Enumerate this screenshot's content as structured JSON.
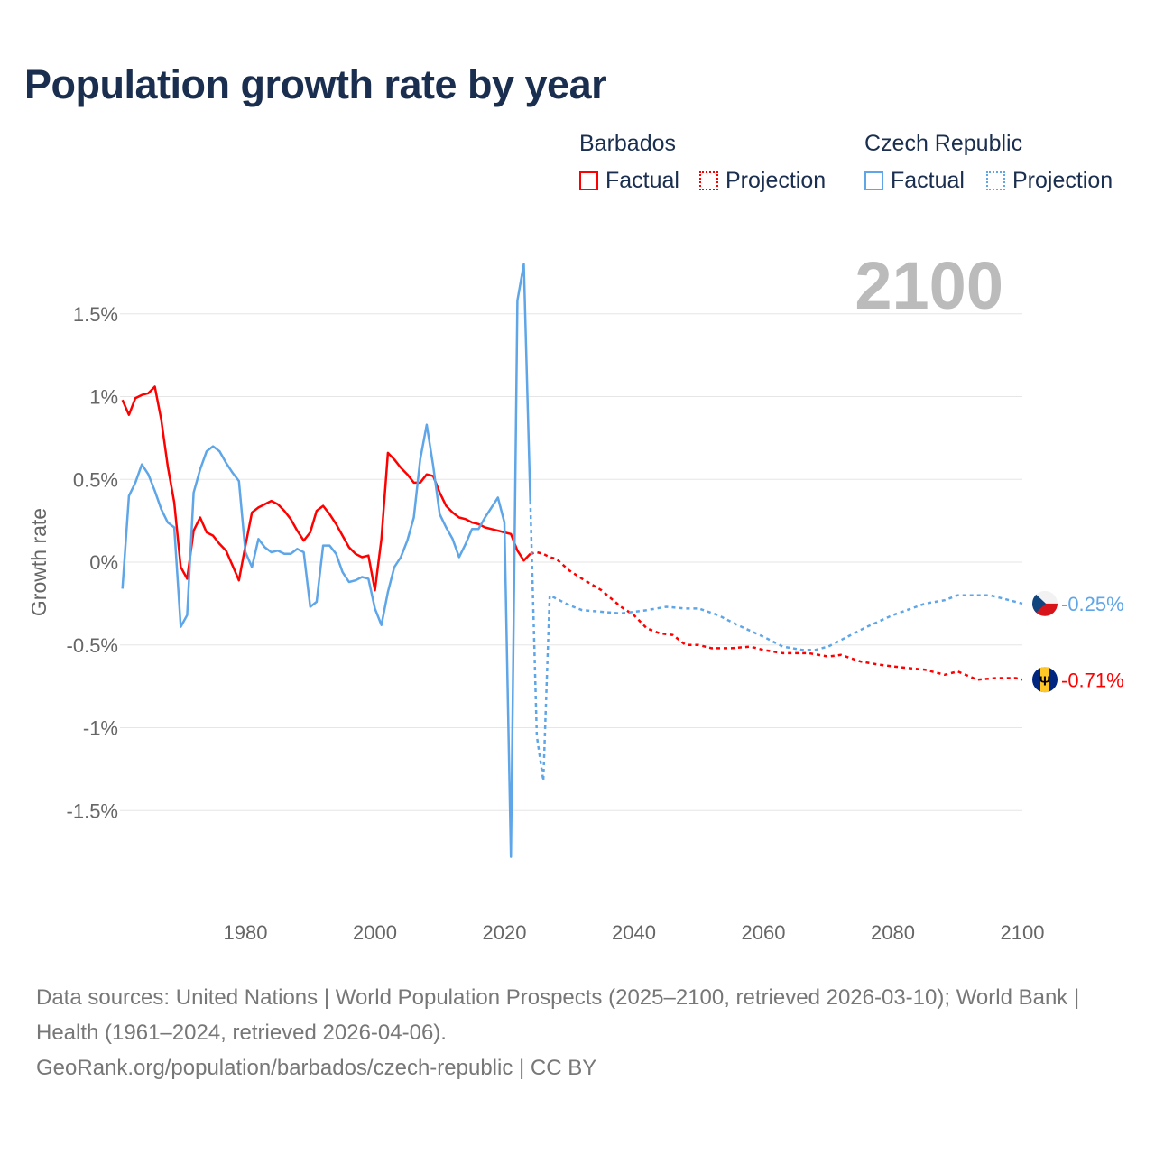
{
  "title": "Population growth rate by year",
  "legend": {
    "groups": [
      {
        "name": "Barbados",
        "factual": "Factual",
        "projection": "Projection",
        "color": "#ff0000"
      },
      {
        "name": "Czech Republic",
        "factual": "Factual",
        "projection": "Projection",
        "color": "#5ea6e8"
      }
    ]
  },
  "year_label": "2100",
  "footer": {
    "sources": "Data sources: United Nations | World Population Prospects (2025–2100, retrieved 2026-03-10); World Bank | Health (1961–2024, retrieved 2026-04-06).",
    "credit": "GeoRank.org/population/barbados/czech-republic | CC BY"
  },
  "chart_data": {
    "type": "line",
    "title": "Population growth rate by year",
    "xlabel": "",
    "ylabel": "Growth rate",
    "xlim": [
      1961,
      2100
    ],
    "ylim": [
      -1.9,
      1.9
    ],
    "x_ticks": [
      1980,
      2000,
      2020,
      2040,
      2060,
      2080,
      2100
    ],
    "x_tick_labels": [
      "1980",
      "2000",
      "2020",
      "2040",
      "2060",
      "2080",
      "2100"
    ],
    "y_ticks": [
      1.5,
      1,
      0.5,
      0,
      -0.5,
      -1,
      -1.5
    ],
    "y_tick_labels": [
      "1.5%",
      "1%",
      "0.5%",
      "0%",
      "-0.5%",
      "-1%",
      "-1.5%"
    ],
    "grid": true,
    "series": [
      {
        "name": "Barbados Factual",
        "color": "#ff0000",
        "dashed": false,
        "x": [
          1961,
          1962,
          1963,
          1964,
          1965,
          1966,
          1967,
          1968,
          1969,
          1970,
          1971,
          1972,
          1973,
          1974,
          1975,
          1976,
          1977,
          1978,
          1979,
          1980,
          1981,
          1982,
          1983,
          1984,
          1985,
          1986,
          1987,
          1988,
          1989,
          1990,
          1991,
          1992,
          1993,
          1994,
          1995,
          1996,
          1997,
          1998,
          1999,
          2000,
          2001,
          2002,
          2003,
          2004,
          2005,
          2006,
          2007,
          2008,
          2009,
          2010,
          2011,
          2012,
          2013,
          2014,
          2015,
          2016,
          2017,
          2018,
          2019,
          2020,
          2021,
          2022,
          2023,
          2024
        ],
        "y": [
          0.98,
          0.89,
          0.99,
          1.01,
          1.02,
          1.06,
          0.86,
          0.58,
          0.36,
          -0.03,
          -0.1,
          0.19,
          0.27,
          0.18,
          0.16,
          0.11,
          0.07,
          -0.02,
          -0.11,
          0.1,
          0.3,
          0.33,
          0.35,
          0.37,
          0.35,
          0.31,
          0.26,
          0.19,
          0.13,
          0.18,
          0.31,
          0.34,
          0.29,
          0.23,
          0.16,
          0.09,
          0.05,
          0.03,
          0.04,
          -0.17,
          0.14,
          0.66,
          0.62,
          0.57,
          0.53,
          0.48,
          0.48,
          0.53,
          0.52,
          0.42,
          0.34,
          0.3,
          0.27,
          0.26,
          0.24,
          0.23,
          0.21,
          0.2,
          0.19,
          0.18,
          0.17,
          0.07,
          0.01,
          0.05
        ]
      },
      {
        "name": "Barbados Projection",
        "color": "#ff0000",
        "dashed": true,
        "x": [
          2024,
          2025,
          2026,
          2027,
          2028,
          2030,
          2032,
          2035,
          2038,
          2040,
          2042,
          2044,
          2046,
          2048,
          2050,
          2052,
          2055,
          2058,
          2060,
          2063,
          2067,
          2070,
          2072,
          2075,
          2078,
          2080,
          2085,
          2088,
          2090,
          2093,
          2096,
          2099,
          2100
        ],
        "y": [
          0.05,
          0.06,
          0.05,
          0.03,
          0.02,
          -0.05,
          -0.1,
          -0.17,
          -0.27,
          -0.32,
          -0.4,
          -0.43,
          -0.44,
          -0.5,
          -0.5,
          -0.52,
          -0.52,
          -0.51,
          -0.53,
          -0.55,
          -0.55,
          -0.57,
          -0.56,
          -0.6,
          -0.62,
          -0.63,
          -0.65,
          -0.68,
          -0.66,
          -0.71,
          -0.7,
          -0.7,
          -0.71
        ]
      },
      {
        "name": "Czech Republic Factual",
        "color": "#5ea6e8",
        "dashed": false,
        "x": [
          1961,
          1962,
          1963,
          1964,
          1965,
          1966,
          1967,
          1968,
          1969,
          1970,
          1971,
          1972,
          1973,
          1974,
          1975,
          1976,
          1977,
          1978,
          1979,
          1980,
          1981,
          1982,
          1983,
          1984,
          1985,
          1986,
          1987,
          1988,
          1989,
          1990,
          1991,
          1992,
          1993,
          1994,
          1995,
          1996,
          1997,
          1998,
          1999,
          2000,
          2001,
          2002,
          2003,
          2004,
          2005,
          2006,
          2007,
          2008,
          2009,
          2010,
          2011,
          2012,
          2013,
          2014,
          2015,
          2016,
          2017,
          2018,
          2019,
          2020,
          2021,
          2022,
          2023,
          2024
        ],
        "y": [
          -0.16,
          0.4,
          0.48,
          0.59,
          0.53,
          0.43,
          0.32,
          0.24,
          0.21,
          -0.39,
          -0.32,
          0.42,
          0.56,
          0.67,
          0.7,
          0.67,
          0.6,
          0.54,
          0.49,
          0.06,
          -0.03,
          0.14,
          0.09,
          0.06,
          0.07,
          0.05,
          0.05,
          0.08,
          0.06,
          -0.27,
          -0.24,
          0.1,
          0.1,
          0.05,
          -0.06,
          -0.12,
          -0.11,
          -0.09,
          -0.1,
          -0.28,
          -0.38,
          -0.18,
          -0.03,
          0.03,
          0.13,
          0.27,
          0.62,
          0.83,
          0.58,
          0.29,
          0.21,
          0.14,
          0.03,
          0.11,
          0.2,
          0.2,
          0.27,
          0.33,
          0.39,
          0.24,
          -1.78,
          1.58,
          1.8,
          0.37
        ]
      },
      {
        "name": "Czech Republic Projection",
        "color": "#5ea6e8",
        "dashed": true,
        "x": [
          2024,
          2025,
          2026,
          2027,
          2028,
          2030,
          2032,
          2035,
          2038,
          2040,
          2042,
          2045,
          2048,
          2050,
          2053,
          2056,
          2060,
          2063,
          2066,
          2068,
          2070,
          2073,
          2076,
          2080,
          2085,
          2088,
          2090,
          2095,
          2098,
          2100
        ],
        "y": [
          0.37,
          -1.05,
          -1.32,
          -0.2,
          -0.22,
          -0.26,
          -0.29,
          -0.3,
          -0.31,
          -0.3,
          -0.29,
          -0.27,
          -0.28,
          -0.28,
          -0.32,
          -0.38,
          -0.45,
          -0.51,
          -0.53,
          -0.53,
          -0.51,
          -0.45,
          -0.39,
          -0.32,
          -0.25,
          -0.23,
          -0.2,
          -0.2,
          -0.23,
          -0.25
        ]
      }
    ],
    "end_labels": [
      {
        "country": "Czech Republic",
        "text": "-0.25%",
        "value": -0.25,
        "color": "#5ea6e8"
      },
      {
        "country": "Barbados",
        "text": "-0.71%",
        "value": -0.71,
        "color": "#ff0000"
      }
    ]
  }
}
